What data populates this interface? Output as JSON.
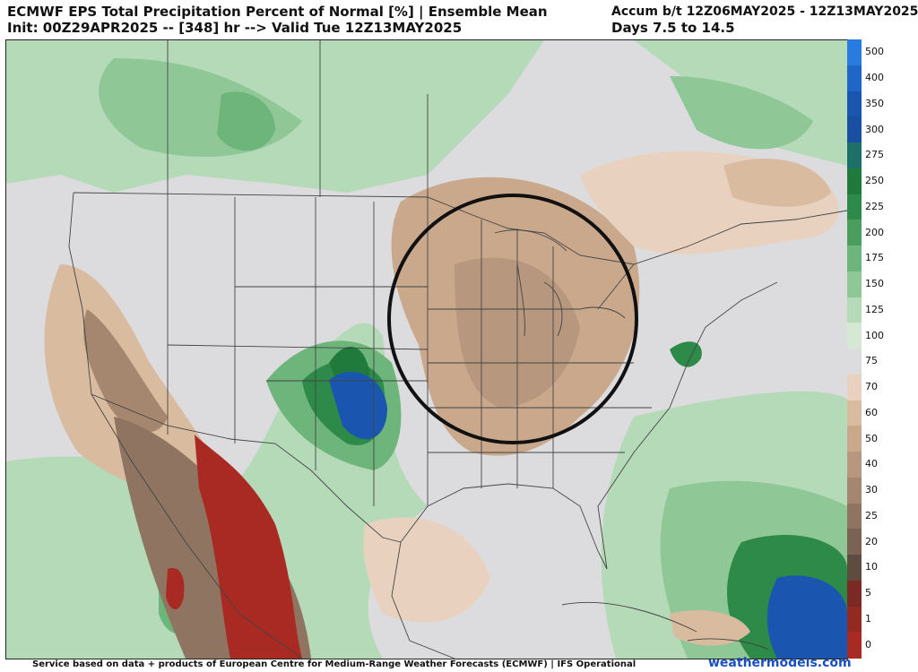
{
  "header": {
    "title": "ECMWF EPS Total Precipitation Percent of Normal [%] | Ensemble Mean",
    "init": "Init: 00Z29APR2025 -- [348] hr --> Valid Tue 12Z13MAY2025",
    "accum": "Accum b/t 12Z06MAY2025 - 12Z13MAY2025",
    "days": "Days 7.5 to 14.5"
  },
  "legend": {
    "levels": [
      {
        "label": "500",
        "color": "#2a7be0"
      },
      {
        "label": "400",
        "color": "#1f66c8"
      },
      {
        "label": "350",
        "color": "#1a56b0"
      },
      {
        "label": "300",
        "color": "#184fa3"
      },
      {
        "label": "275",
        "color": "#1d6f6a"
      },
      {
        "label": "250",
        "color": "#207a3c"
      },
      {
        "label": "225",
        "color": "#2d8a48"
      },
      {
        "label": "200",
        "color": "#4a9d5c"
      },
      {
        "label": "175",
        "color": "#6db57a"
      },
      {
        "label": "150",
        "color": "#8fc796"
      },
      {
        "label": "125",
        "color": "#b5dab8"
      },
      {
        "label": "100",
        "color": "#d4e8d4"
      },
      {
        "label": "75",
        "color": "#dcdcdf"
      },
      {
        "label": "70",
        "color": "#e8d2bf"
      },
      {
        "label": "60",
        "color": "#d9bba0"
      },
      {
        "label": "50",
        "color": "#c9a88c"
      },
      {
        "label": "40",
        "color": "#b7977d"
      },
      {
        "label": "30",
        "color": "#a5876f"
      },
      {
        "label": "25",
        "color": "#8f7561"
      },
      {
        "label": "20",
        "color": "#7a6353"
      },
      {
        "label": "10",
        "color": "#5f4c40"
      },
      {
        "label": "5",
        "color": "#7a2a22"
      },
      {
        "label": "1",
        "color": "#932a22"
      },
      {
        "label": "0",
        "color": "#a82a22"
      }
    ]
  },
  "colors": {
    "dry": "#c9a88c",
    "very_dry": "#a82a22",
    "normal": "#dcdcdf",
    "wet": "#8fc796",
    "very_wet": "#2d8a48",
    "extreme_wet": "#1a56b0",
    "boundary": "#444444",
    "highlight_circle": "#111111"
  },
  "footer": {
    "credit": "Service based on data + products of European Centre for Medium-Range Weather Forecasts (ECMWF) | IFS Operational",
    "brand": "weathermodels.com"
  }
}
